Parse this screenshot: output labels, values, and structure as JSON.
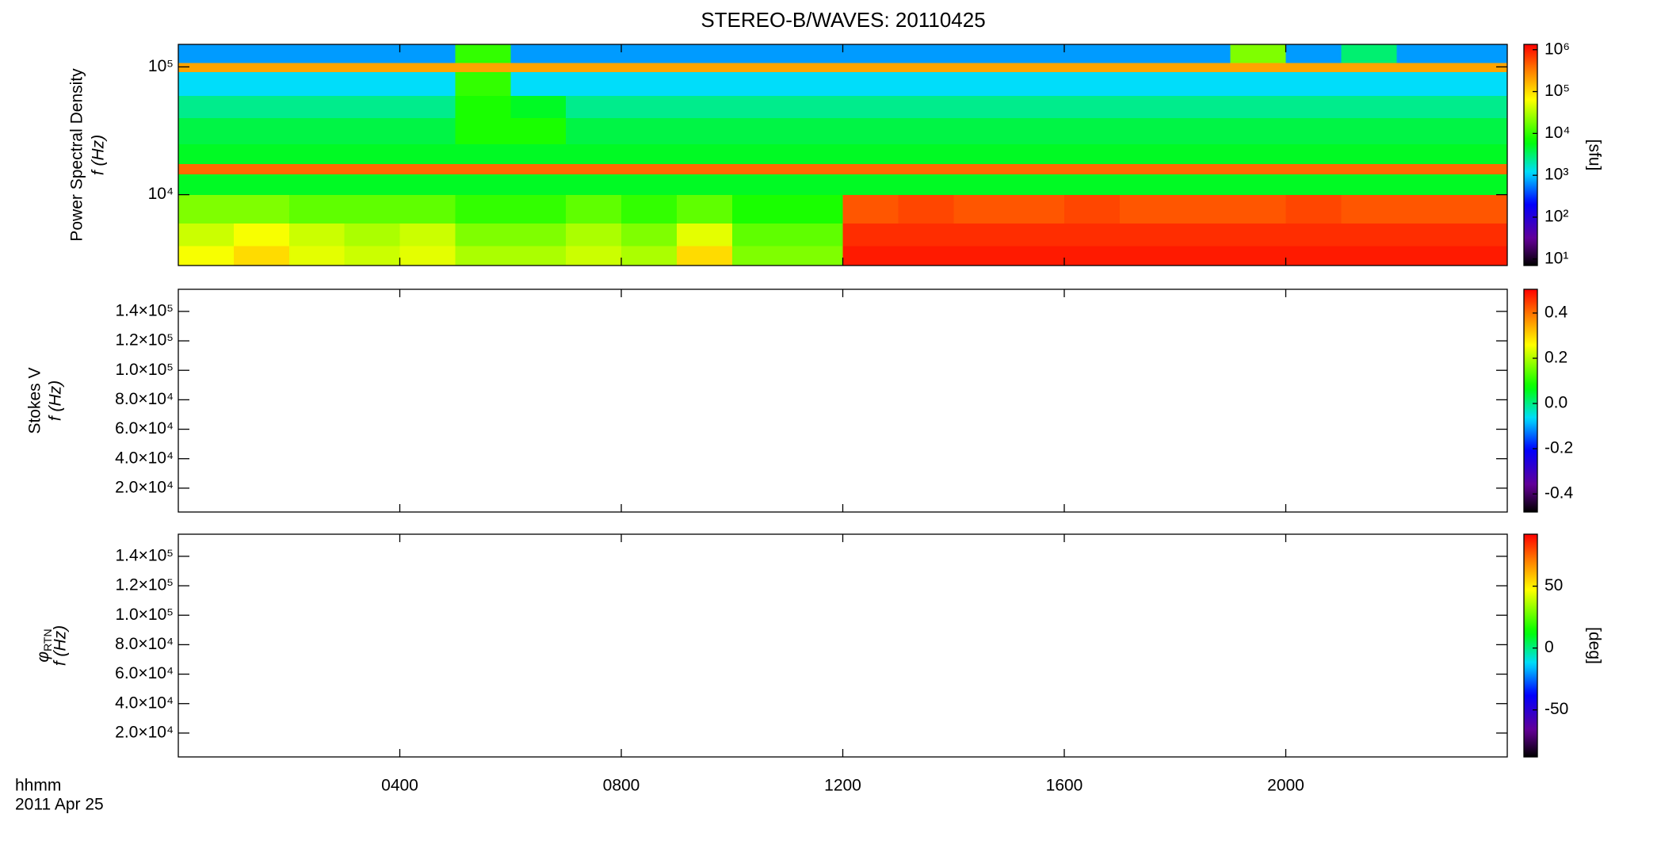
{
  "chart_data": [
    {
      "type": "heatmap",
      "title": "STEREO-B/WAVES: 20110425",
      "ylabel": "Power Spectral Density",
      "ylabel2": "f (Hz)",
      "xlim": [
        0,
        24
      ],
      "xticks": [
        4,
        8,
        12,
        16,
        20
      ],
      "ylog": true,
      "ylim": [
        2790,
        150000
      ],
      "yticks": [
        {
          "value": 10000,
          "label": "10⁴"
        },
        {
          "value": 100000,
          "label": "10⁵"
        }
      ],
      "clog": true,
      "clim": [
        7,
        1340000
      ],
      "cticks": [
        {
          "value": 10,
          "label": "10¹"
        },
        {
          "value": 100,
          "label": "10²"
        },
        {
          "value": 1000,
          "label": "10³"
        },
        {
          "value": 10000,
          "label": "10⁴"
        },
        {
          "value": 100000,
          "label": "10⁵"
        },
        {
          "value": 1000000,
          "label": "10⁶"
        }
      ],
      "clabel": "[sfu]",
      "xbins": [
        0,
        1,
        2,
        3,
        4,
        5,
        6,
        7,
        8,
        9,
        10,
        11,
        12,
        13,
        14,
        15,
        16,
        17,
        18,
        19,
        20,
        21,
        22,
        23,
        24
      ],
      "ybins": [
        2790,
        4000,
        6000,
        10000,
        14500,
        17500,
        25000,
        40000,
        60000,
        92000,
        108000,
        150000
      ],
      "z": [
        [
          60000,
          100000,
          50000,
          40000,
          50000,
          30000,
          30000,
          40000,
          30000,
          100000,
          20000,
          20000,
          1000000,
          1000000,
          1000000,
          1000000,
          1000000,
          1000000,
          1000000,
          1000000,
          1000000,
          1000000,
          1000000,
          1000000
        ],
        [
          40000,
          60000,
          40000,
          30000,
          40000,
          20000,
          20000,
          30000,
          20000,
          50000,
          15000,
          15000,
          800000,
          800000,
          800000,
          800000,
          800000,
          800000,
          800000,
          800000,
          800000,
          800000,
          800000,
          800000
        ],
        [
          20000,
          20000,
          15000,
          15000,
          15000,
          10000,
          10000,
          15000,
          10000,
          15000,
          8000,
          8000,
          500000,
          600000,
          500000,
          500000,
          600000,
          500000,
          500000,
          500000,
          600000,
          500000,
          500000,
          500000
        ],
        [
          5000,
          5000,
          5000,
          5000,
          5000,
          5000,
          5000,
          5000,
          5000,
          5000,
          5000,
          5000,
          5000,
          5000,
          5000,
          5000,
          5000,
          5000,
          5000,
          5000,
          5000,
          5000,
          5000,
          5000
        ],
        [
          400000,
          400000,
          400000,
          400000,
          400000,
          400000,
          400000,
          400000,
          400000,
          400000,
          400000,
          400000,
          400000,
          400000,
          400000,
          400000,
          400000,
          400000,
          400000,
          400000,
          400000,
          400000,
          400000,
          400000
        ],
        [
          5000,
          5000,
          5000,
          5000,
          5000,
          5000,
          5000,
          5000,
          5000,
          5000,
          5000,
          5000,
          5000,
          5000,
          5000,
          5000,
          5000,
          5000,
          5000,
          5000,
          5000,
          5000,
          5000,
          5000
        ],
        [
          4000,
          4000,
          4000,
          4000,
          4000,
          8000,
          8000,
          4000,
          4000,
          4000,
          4000,
          4000,
          4000,
          4000,
          4000,
          4000,
          4000,
          4000,
          4000,
          4000,
          4000,
          4000,
          4000,
          4000
        ],
        [
          2500,
          2500,
          2500,
          2500,
          2500,
          8000,
          5000,
          2500,
          2500,
          2500,
          2500,
          2500,
          2500,
          2500,
          2500,
          2500,
          2500,
          2500,
          2500,
          2500,
          2500,
          2500,
          2500,
          2500
        ],
        [
          1200,
          1200,
          1200,
          1200,
          1200,
          10000,
          1200,
          1200,
          1200,
          1200,
          1200,
          1200,
          1200,
          1200,
          1200,
          1200,
          1200,
          1200,
          1200,
          1200,
          1200,
          1200,
          1200,
          1200
        ],
        [
          200000,
          200000,
          200000,
          200000,
          200000,
          200000,
          200000,
          200000,
          200000,
          200000,
          200000,
          200000,
          200000,
          200000,
          200000,
          200000,
          200000,
          200000,
          200000,
          200000,
          200000,
          200000,
          200000,
          200000
        ],
        [
          700,
          700,
          700,
          700,
          700,
          10000,
          700,
          700,
          700,
          700,
          700,
          700,
          700,
          700,
          700,
          700,
          700,
          700,
          700,
          20000,
          700,
          3000,
          700,
          700
        ]
      ]
    },
    {
      "type": "heatmap",
      "ylabel": "Stokes V",
      "ylabel2": "f (Hz)",
      "xlim": [
        0,
        24
      ],
      "xticks": [
        4,
        8,
        12,
        16,
        20
      ],
      "ylim": [
        3800,
        155000
      ],
      "yticks": [
        {
          "value": 20000,
          "label": "2.0×10⁴"
        },
        {
          "value": 40000,
          "label": "4.0×10⁴"
        },
        {
          "value": 60000,
          "label": "6.0×10⁴"
        },
        {
          "value": 80000,
          "label": "8.0×10⁴"
        },
        {
          "value": 100000,
          "label": "1.0×10⁵"
        },
        {
          "value": 120000,
          "label": "1.2×10⁵"
        },
        {
          "value": 140000,
          "label": "1.4×10⁵"
        }
      ],
      "clim": [
        -0.48,
        0.505
      ],
      "cticks": [
        -0.4,
        -0.2,
        {
          "value": 0,
          "label": "0.0"
        },
        0.2,
        0.4
      ]
    },
    {
      "type": "heatmap",
      "ylabel": "φ",
      "ylabel_sub": "RTN",
      "ylabel2": "f (Hz)",
      "xlim": [
        0,
        24
      ],
      "xticks": [
        {
          "value": 4,
          "label": "0400"
        },
        {
          "value": 8,
          "label": "0800"
        },
        {
          "value": 12,
          "label": "1200"
        },
        {
          "value": 16,
          "label": "1600"
        },
        {
          "value": 20,
          "label": "2000"
        }
      ],
      "xlabel": "hhmm",
      "date": "2011 Apr 25",
      "ylim": [
        3800,
        155000
      ],
      "yticks": [
        {
          "value": 20000,
          "label": "2.0×10⁴"
        },
        {
          "value": 40000,
          "label": "4.0×10⁴"
        },
        {
          "value": 60000,
          "label": "6.0×10⁴"
        },
        {
          "value": 80000,
          "label": "8.0×10⁴"
        },
        {
          "value": 100000,
          "label": "1.0×10⁵"
        },
        {
          "value": 120000,
          "label": "1.2×10⁵"
        },
        {
          "value": 140000,
          "label": "1.4×10⁵"
        }
      ],
      "clim": [
        -88,
        92
      ],
      "cticks": [
        -50,
        0,
        50
      ],
      "clabel": "[deg]"
    }
  ]
}
